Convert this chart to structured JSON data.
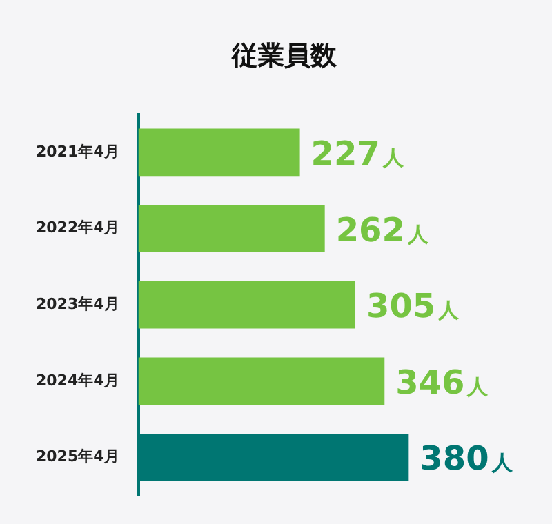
{
  "chart_data": {
    "type": "bar",
    "orientation": "horizontal",
    "title": "従業員数",
    "categories": [
      "2021年4月",
      "2022年4月",
      "2023年4月",
      "2024年4月",
      "2025年4月"
    ],
    "values": [
      227,
      262,
      305,
      346,
      380
    ],
    "colors": [
      "#76c442",
      "#76c442",
      "#76c442",
      "#76c442",
      "#007672"
    ],
    "value_labels": [
      "227人",
      "262人",
      "305人",
      "346人",
      "380人"
    ],
    "tick_labels": "y"
  }
}
